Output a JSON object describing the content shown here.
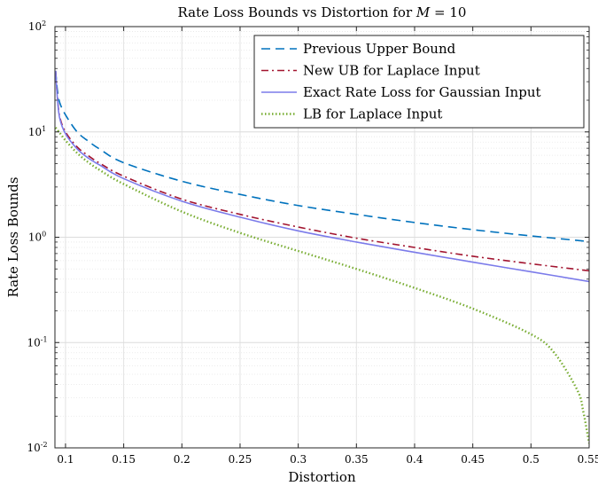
{
  "chart_data": {
    "type": "line",
    "title": "Rate Loss Bounds vs Distortion for M = 10",
    "title_parts": {
      "prefix": "Rate Loss Bounds vs Distortion for ",
      "var": "M",
      "suffix": " = 10"
    },
    "xlabel": "Distortion",
    "ylabel": "Rate Loss Bounds",
    "xlim": [
      0.0909,
      0.55
    ],
    "ylim": [
      0.01,
      100
    ],
    "yscale": "log",
    "grid": true,
    "legend_position": "top-right",
    "x_ticks": [
      "0.1",
      "0.15",
      "0.2",
      "0.25",
      "0.3",
      "0.35",
      "0.4",
      "0.45",
      "0.5",
      "0.55"
    ],
    "x_tick_values": [
      0.1,
      0.15,
      0.2,
      0.25,
      0.3,
      0.35,
      0.4,
      0.45,
      0.5,
      0.55
    ],
    "y_ticks": [
      {
        "value": 0.01,
        "base": "10",
        "exp": "-2"
      },
      {
        "value": 0.1,
        "base": "10",
        "exp": "-1"
      },
      {
        "value": 1,
        "base": "10",
        "exp": "0"
      },
      {
        "value": 10,
        "base": "10",
        "exp": "1"
      },
      {
        "value": 100,
        "base": "10",
        "exp": "2"
      }
    ],
    "series": [
      {
        "name": "Previous Upper Bound",
        "color": "#0072BD",
        "style": "dashed",
        "x": [
          0.0915,
          0.093,
          0.095,
          0.1,
          0.11,
          0.12,
          0.13,
          0.15,
          0.2,
          0.25,
          0.3,
          0.35,
          0.4,
          0.45,
          0.5,
          0.55
        ],
        "y": [
          38,
          25,
          19,
          14.5,
          10,
          8.1,
          6.8,
          5.1,
          3.4,
          2.55,
          2.0,
          1.65,
          1.38,
          1.18,
          1.03,
          0.91
        ]
      },
      {
        "name": "New UB for Laplace Input",
        "color": "#A2142F",
        "style": "dashdot",
        "x": [
          0.0915,
          0.093,
          0.095,
          0.1,
          0.11,
          0.12,
          0.13,
          0.15,
          0.2,
          0.25,
          0.3,
          0.35,
          0.4,
          0.45,
          0.5,
          0.55
        ],
        "y": [
          38,
          22,
          14,
          10,
          7.2,
          5.9,
          5.0,
          3.8,
          2.3,
          1.65,
          1.25,
          0.98,
          0.8,
          0.66,
          0.56,
          0.48
        ]
      },
      {
        "name": "Exact Rate Loss for Gaussian Input",
        "color": "#7B7BEA",
        "style": "solid",
        "x": [
          0.0915,
          0.093,
          0.095,
          0.1,
          0.11,
          0.12,
          0.13,
          0.15,
          0.2,
          0.25,
          0.3,
          0.35,
          0.4,
          0.45,
          0.5,
          0.55
        ],
        "y": [
          38,
          21,
          13.5,
          9.6,
          6.9,
          5.6,
          4.8,
          3.6,
          2.2,
          1.55,
          1.15,
          0.9,
          0.72,
          0.58,
          0.47,
          0.38
        ]
      },
      {
        "name": "LB for Laplace Input",
        "color": "#77AC30",
        "style": "dotted",
        "x": [
          0.0915,
          0.095,
          0.1,
          0.11,
          0.12,
          0.13,
          0.15,
          0.2,
          0.25,
          0.3,
          0.35,
          0.4,
          0.45,
          0.5,
          0.52,
          0.54,
          0.545,
          0.55
        ],
        "y": [
          11,
          9.8,
          8.3,
          6.3,
          5.1,
          4.3,
          3.2,
          1.75,
          1.1,
          0.74,
          0.5,
          0.33,
          0.21,
          0.12,
          0.08,
          0.035,
          0.022,
          0.011
        ]
      }
    ]
  }
}
